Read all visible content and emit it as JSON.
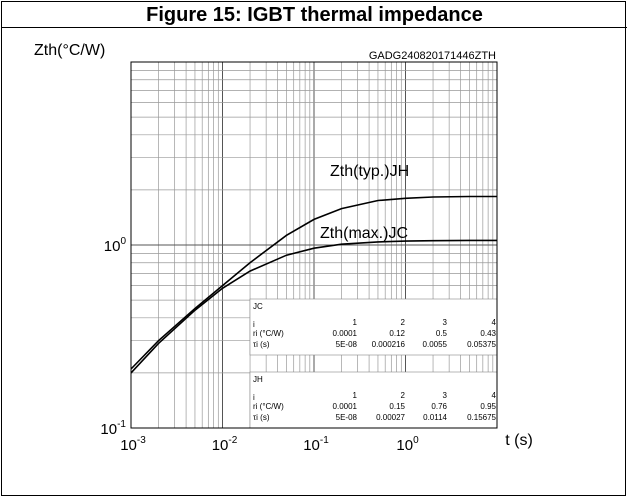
{
  "title": "Figure 15: IGBT thermal impedance",
  "chart_data": {
    "type": "line",
    "ylabel": "Zth(°C/W)",
    "xlabel": "t (s)",
    "code": "GADG240820171446ZTH",
    "x_scale": "log",
    "y_scale": "log",
    "xlim": [
      0.001,
      10
    ],
    "ylim": [
      0.1,
      10
    ],
    "x_ticks": [
      {
        "base": "10",
        "exp": "-3"
      },
      {
        "base": "10",
        "exp": "-2"
      },
      {
        "base": "10",
        "exp": "-1"
      },
      {
        "base": "10",
        "exp": "0"
      }
    ],
    "y_ticks": [
      {
        "base": "10",
        "exp": "0"
      },
      {
        "base": "10",
        "exp": "-1"
      }
    ],
    "grid": true,
    "series": [
      {
        "name": "Zth(typ.)JH",
        "x": [
          0.001,
          0.002,
          0.005,
          0.01,
          0.02,
          0.05,
          0.1,
          0.2,
          0.5,
          1,
          2,
          5,
          10
        ],
        "y": [
          0.21,
          0.3,
          0.45,
          0.6,
          0.8,
          1.13,
          1.38,
          1.58,
          1.75,
          1.8,
          1.83,
          1.84,
          1.84
        ]
      },
      {
        "name": "Zth(max.)JC",
        "x": [
          0.001,
          0.002,
          0.005,
          0.01,
          0.02,
          0.05,
          0.1,
          0.2,
          0.5,
          1,
          2,
          5,
          10
        ],
        "y": [
          0.2,
          0.29,
          0.44,
          0.58,
          0.72,
          0.88,
          0.96,
          1.01,
          1.04,
          1.05,
          1.055,
          1.06,
          1.06
        ]
      }
    ],
    "tables": [
      {
        "label": "JC",
        "row_header": "i",
        "columns": [
          "1",
          "2",
          "3",
          "4"
        ],
        "rows": [
          {
            "label": "ri (°C/W)",
            "values": [
              "0.0001",
              "0.12",
              "0.5",
              "0.43"
            ]
          },
          {
            "label": "τi (s)",
            "values": [
              "5E-08",
              "0.000216",
              "0.0055",
              "0.05375"
            ]
          }
        ]
      },
      {
        "label": "JH",
        "row_header": "i",
        "columns": [
          "1",
          "2",
          "3",
          "4"
        ],
        "rows": [
          {
            "label": "ri (°C/W)",
            "values": [
              "0.0001",
              "0.15",
              "0.76",
              "0.95"
            ]
          },
          {
            "label": "τi (s)",
            "values": [
              "5E-08",
              "0.00027",
              "0.0114",
              "0.15675"
            ]
          }
        ]
      }
    ]
  }
}
